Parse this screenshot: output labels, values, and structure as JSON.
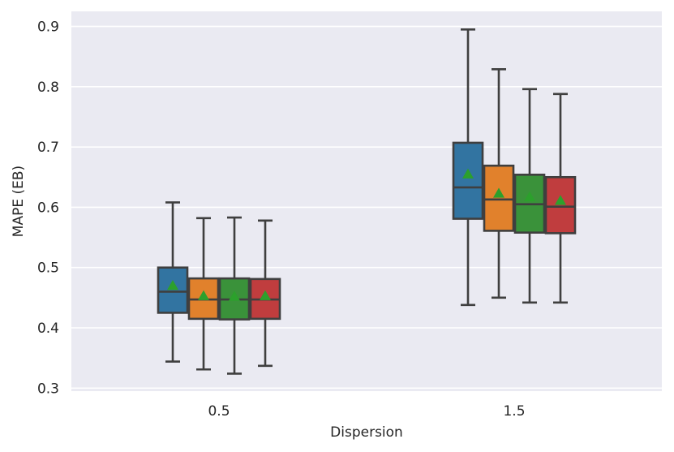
{
  "chart_data": {
    "type": "box",
    "title": "",
    "xlabel": "Dispersion",
    "ylabel": "MAPE (EB)",
    "ylim": [
      0.295,
      0.925
    ],
    "yticks": [
      "0.3",
      "0.4",
      "0.5",
      "0.6",
      "0.7",
      "0.8",
      "0.9"
    ],
    "grid": true,
    "legend": "none",
    "categories": [
      "0.5",
      "1.5"
    ],
    "series_colors": [
      "#3274a1",
      "#e1812c",
      "#3a923a",
      "#c03d3e"
    ],
    "mean_marker_color": "#2ca02c",
    "groups": [
      {
        "category": "0.5",
        "boxes": [
          {
            "whisker_low": 0.344,
            "q1": 0.425,
            "median": 0.46,
            "q3": 0.5,
            "whisker_high": 0.608,
            "mean": 0.47
          },
          {
            "whisker_low": 0.331,
            "q1": 0.415,
            "median": 0.447,
            "q3": 0.482,
            "whisker_high": 0.582,
            "mean": 0.453
          },
          {
            "whisker_low": 0.324,
            "q1": 0.414,
            "median": 0.447,
            "q3": 0.482,
            "whisker_high": 0.583,
            "mean": 0.452
          },
          {
            "whisker_low": 0.337,
            "q1": 0.415,
            "median": 0.447,
            "q3": 0.481,
            "whisker_high": 0.578,
            "mean": 0.453
          }
        ]
      },
      {
        "category": "1.5",
        "boxes": [
          {
            "whisker_low": 0.438,
            "q1": 0.581,
            "median": 0.633,
            "q3": 0.707,
            "whisker_high": 0.895,
            "mean": 0.655
          },
          {
            "whisker_low": 0.45,
            "q1": 0.561,
            "median": 0.613,
            "q3": 0.669,
            "whisker_high": 0.829,
            "mean": 0.623
          },
          {
            "whisker_low": 0.442,
            "q1": 0.558,
            "median": 0.605,
            "q3": 0.654,
            "whisker_high": 0.796,
            "mean": 0.617
          },
          {
            "whisker_low": 0.442,
            "q1": 0.557,
            "median": 0.601,
            "q3": 0.65,
            "whisker_high": 0.788,
            "mean": 0.611
          }
        ]
      }
    ]
  }
}
